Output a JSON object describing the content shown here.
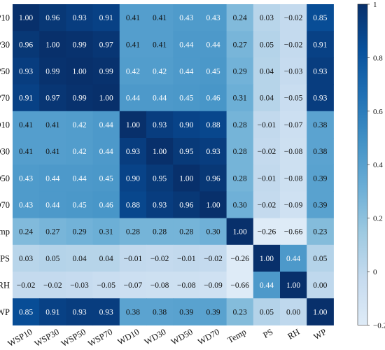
{
  "chart_data": {
    "type": "heatmap",
    "title": "",
    "xlabel": "",
    "ylabel": "",
    "variables": [
      "WSP10",
      "WSP30",
      "WSP50",
      "WSP70",
      "WD10",
      "WD30",
      "WD50",
      "WD70",
      "Temp",
      "PS",
      "RH",
      "WP"
    ],
    "matrix": [
      [
        1.0,
        0.96,
        0.93,
        0.91,
        0.41,
        0.41,
        0.43,
        0.43,
        0.24,
        0.03,
        -0.02,
        0.85
      ],
      [
        0.96,
        1.0,
        0.99,
        0.97,
        0.41,
        0.41,
        0.44,
        0.44,
        0.27,
        0.05,
        -0.02,
        0.91
      ],
      [
        0.93,
        0.99,
        1.0,
        0.99,
        0.42,
        0.42,
        0.44,
        0.45,
        0.29,
        0.04,
        -0.03,
        0.93
      ],
      [
        0.91,
        0.97,
        0.99,
        1.0,
        0.44,
        0.44,
        0.45,
        0.46,
        0.31,
        0.04,
        -0.05,
        0.93
      ],
      [
        0.41,
        0.41,
        0.42,
        0.44,
        1.0,
        0.93,
        0.9,
        0.88,
        0.28,
        -0.01,
        -0.07,
        0.38
      ],
      [
        0.41,
        0.41,
        0.42,
        0.44,
        0.93,
        1.0,
        0.95,
        0.93,
        0.28,
        -0.02,
        -0.08,
        0.38
      ],
      [
        0.43,
        0.44,
        0.44,
        0.45,
        0.9,
        0.95,
        1.0,
        0.96,
        0.28,
        -0.01,
        -0.08,
        0.39
      ],
      [
        0.43,
        0.44,
        0.45,
        0.46,
        0.88,
        0.93,
        0.96,
        1.0,
        0.3,
        -0.02,
        -0.09,
        0.39
      ],
      [
        0.24,
        0.27,
        0.29,
        0.31,
        0.28,
        0.28,
        0.28,
        0.3,
        1.0,
        -0.26,
        -0.66,
        0.23
      ],
      [
        0.03,
        0.05,
        0.04,
        0.04,
        -0.01,
        -0.02,
        -0.01,
        -0.02,
        -0.26,
        1.0,
        0.44,
        0.05
      ],
      [
        -0.02,
        -0.02,
        -0.03,
        -0.05,
        -0.07,
        -0.08,
        -0.08,
        -0.09,
        -0.66,
        0.44,
        1.0,
        0.0
      ],
      [
        0.85,
        0.91,
        0.93,
        0.93,
        0.38,
        0.38,
        0.39,
        0.39,
        0.23,
        0.05,
        0.0,
        1.0
      ]
    ],
    "value_format": "2 decimals, minus sign shown as −",
    "colorbar": {
      "min": -0.2,
      "max": 1.0,
      "ticks": [
        "1",
        "0.8",
        "0.6",
        "0.4",
        "0.2",
        "0",
        "−0.2"
      ],
      "tick_values": [
        1,
        0.8,
        0.6,
        0.4,
        0.2,
        0,
        -0.2
      ],
      "colormap": [
        "#deebf7",
        "#c6dbef",
        "#9ecae1",
        "#6baed6",
        "#4292c6",
        "#2171b5",
        "#08519c",
        "#08306b"
      ]
    },
    "grid": false,
    "legend": "colorbar right"
  }
}
